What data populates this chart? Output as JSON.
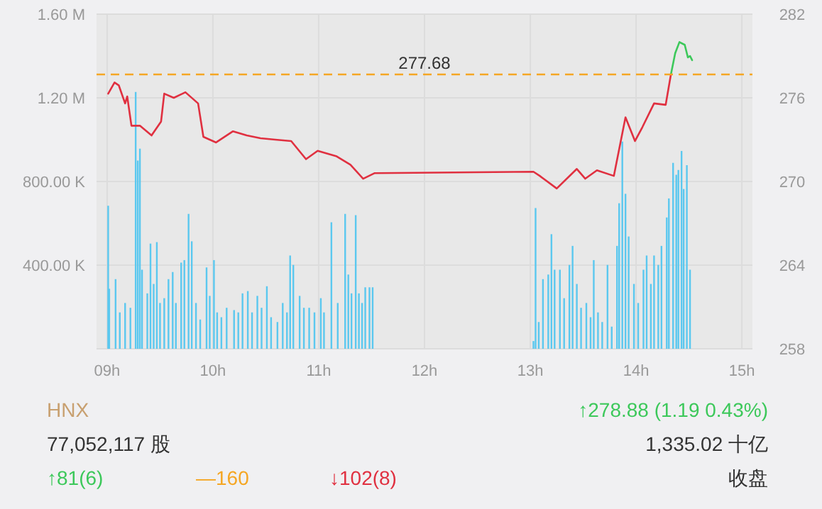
{
  "chart_data": {
    "type": "bar",
    "grid": true,
    "xlim": [
      8.9,
      15.1
    ],
    "xticks": [
      {
        "value": 9,
        "label": "09h"
      },
      {
        "value": 10,
        "label": "10h"
      },
      {
        "value": 11,
        "label": "11h"
      },
      {
        "value": 12,
        "label": "12h"
      },
      {
        "value": 13,
        "label": "13h"
      },
      {
        "value": 14,
        "label": "14h"
      },
      {
        "value": 15,
        "label": "15h"
      }
    ],
    "ylim": [
      0,
      1600000
    ],
    "yticks": [
      {
        "value": 0,
        "label": null
      },
      {
        "value": 400000,
        "label": "400.00 K"
      },
      {
        "value": 800000,
        "label": "800.00 K"
      },
      {
        "value": 1200000,
        "label": "1.20 M"
      },
      {
        "value": 1600000,
        "label": "1.60 M"
      }
    ],
    "y2lim": [
      258,
      282
    ],
    "y2ticks": [
      258,
      264,
      270,
      276,
      282
    ],
    "ref_lines": [
      {
        "axis": "y2",
        "value": 277.68,
        "label": "277.68",
        "color": "#f5a623",
        "line_style": "dashed"
      }
    ],
    "series": [
      {
        "color": "#5bc8ef",
        "x": [
          9.01,
          9.02,
          9.08,
          9.12,
          9.17,
          9.22,
          9.27,
          9.29,
          9.31,
          9.33,
          9.38,
          9.41,
          9.44,
          9.47,
          9.5,
          9.54,
          9.58,
          9.62,
          9.65,
          9.7,
          9.73,
          9.77,
          9.8,
          9.84,
          9.88,
          9.94,
          9.97,
          10.01,
          10.04,
          10.08,
          10.13,
          10.2,
          10.24,
          10.28,
          10.33,
          10.37,
          10.42,
          10.46,
          10.51,
          10.55,
          10.61,
          10.66,
          10.7,
          10.73,
          10.76,
          10.82,
          10.86,
          10.91,
          10.96,
          11.02,
          11.05,
          11.12,
          11.18,
          11.25,
          11.28,
          11.31,
          11.35,
          11.38,
          11.41,
          11.44,
          11.48,
          11.51
        ],
        "values": [
          684000,
          287000,
          333000,
          174000,
          219000,
          196000,
          1228000,
          900000,
          957000,
          378000,
          265000,
          503000,
          310000,
          510000,
          219000,
          242000,
          333000,
          367000,
          219000,
          412000,
          424000,
          645000,
          514000,
          219000,
          140000,
          389000,
          253000,
          424000,
          174000,
          151000,
          196000,
          185000,
          174000,
          265000,
          276000,
          174000,
          253000,
          196000,
          299000,
          151000,
          128000,
          219000,
          174000,
          446000,
          401000,
          253000,
          196000,
          196000,
          174000,
          242000,
          174000,
          605000,
          219000,
          645000,
          355000,
          265000,
          639000,
          265000,
          219000,
          294000,
          294000,
          294000
        ]
      },
      {
        "color": "#5bc8ef",
        "x": [
          13.03,
          13.05,
          13.08,
          13.12,
          13.17,
          13.2,
          13.23,
          13.28,
          13.32,
          13.37,
          13.4,
          13.44,
          13.48,
          13.53,
          13.57,
          13.6,
          13.64,
          13.68,
          13.73,
          13.77,
          13.82,
          13.84,
          13.87,
          13.9,
          13.93,
          13.98,
          14.02,
          14.07,
          14.1,
          14.14,
          14.17,
          14.21,
          14.24,
          14.29,
          14.31,
          14.35,
          14.38,
          14.4,
          14.43,
          14.45,
          14.48,
          14.51
        ],
        "values": [
          37000,
          673000,
          128000,
          333000,
          355000,
          548000,
          378000,
          378000,
          242000,
          401000,
          492000,
          310000,
          196000,
          219000,
          151000,
          424000,
          174000,
          128000,
          401000,
          106000,
          492000,
          696000,
          991000,
          741000,
          537000,
          310000,
          219000,
          378000,
          446000,
          310000,
          446000,
          401000,
          492000,
          628000,
          719000,
          889000,
          832000,
          855000,
          946000,
          764000,
          878000,
          378000
        ]
      },
      {
        "type": "line",
        "axis": "y2",
        "color": "#e03040",
        "x": [
          9.01,
          9.07,
          9.11,
          9.17,
          9.19,
          9.23,
          9.31,
          9.42,
          9.51,
          9.54,
          9.63,
          9.74,
          9.86,
          9.91,
          10.03,
          10.19,
          10.32,
          10.45,
          10.59,
          10.74,
          10.88,
          10.99,
          11.17,
          11.3,
          11.42,
          11.53,
          13.03,
          13.09,
          13.25,
          13.44,
          13.52,
          13.63,
          13.79,
          13.9,
          13.99,
          14.06,
          14.17,
          14.28,
          14.33
        ],
        "values": [
          276.3,
          277.1,
          276.9,
          275.6,
          276.1,
          274.0,
          274.0,
          273.3,
          274.3,
          276.3,
          276.0,
          276.4,
          275.6,
          273.2,
          272.8,
          273.6,
          273.3,
          273.1,
          273.0,
          272.9,
          271.6,
          272.2,
          271.8,
          271.2,
          270.2,
          270.6,
          270.7,
          270.4,
          269.5,
          270.9,
          270.2,
          270.8,
          270.4,
          274.6,
          272.9,
          273.9,
          275.6,
          275.5,
          277.7
        ]
      },
      {
        "type": "line",
        "axis": "y2",
        "color": "#3cc85a",
        "x": [
          14.33,
          14.37,
          14.41,
          14.46,
          14.49,
          14.51,
          14.53
        ],
        "values": [
          277.7,
          279.2,
          280.0,
          279.8,
          278.9,
          279.0,
          278.7
        ]
      }
    ],
    "annotations": [
      "HNX",
      "↑278.88  (1.19  0.43%)",
      "77,052,117  股",
      "1,335.02  十亿",
      "↑81(6)",
      "—160",
      "↓102(8)",
      "收盘"
    ]
  }
}
